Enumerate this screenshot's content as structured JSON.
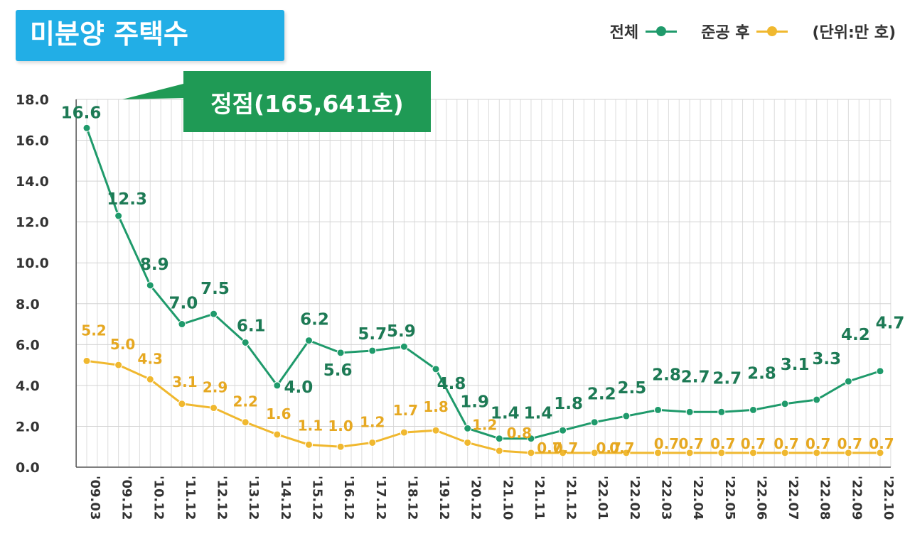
{
  "title": "미분양 주택수",
  "legend": {
    "total": "전체",
    "after_completion": "준공 후",
    "unit": "(단위:만 호)"
  },
  "callout": "정점(165,641호)",
  "colors": {
    "title_bg": "#22aee6",
    "total": "#1f9a6b",
    "after_completion": "#f0b82f",
    "callout_bg": "#1f9a55",
    "grid": "#d3d3d3"
  },
  "chart_data": {
    "type": "line",
    "categories": [
      "'09.03",
      "'09.12",
      "'10.12",
      "'11.12",
      "'12.12",
      "'13.12",
      "'14.12",
      "'15.12",
      "'16.12",
      "'17.12",
      "'18.12",
      "'19.12",
      "'20.12",
      "'21.10",
      "'21.11",
      "'21.12",
      "'22.01",
      "'22.02",
      "'22.03",
      "'22.04",
      "'22.05",
      "'22.06",
      "'22.07",
      "'22.08",
      "'22.09",
      "'22.10"
    ],
    "series": [
      {
        "name": "전체",
        "values": [
          16.6,
          12.3,
          8.9,
          7.0,
          7.5,
          6.1,
          4.0,
          6.2,
          5.6,
          5.7,
          5.9,
          4.8,
          1.9,
          1.4,
          1.4,
          1.8,
          2.2,
          2.5,
          2.8,
          2.7,
          2.7,
          2.8,
          3.1,
          3.3,
          4.2,
          4.7
        ]
      },
      {
        "name": "준공 후",
        "values": [
          5.2,
          5.0,
          4.3,
          3.1,
          2.9,
          2.2,
          1.6,
          1.1,
          1.0,
          1.2,
          1.7,
          1.8,
          1.2,
          0.8,
          0.7,
          0.7,
          0.7,
          0.7,
          0.7,
          0.7,
          0.7,
          0.7,
          0.7,
          0.7,
          0.7,
          0.7
        ]
      }
    ],
    "y_ticks": [
      "0.0",
      "2.0",
      "4.0",
      "6.0",
      "8.0",
      "10.0",
      "12.0",
      "14.0",
      "16.0",
      "18.0"
    ],
    "ylim": [
      0,
      18
    ],
    "xlabel": "",
    "ylabel": "",
    "grid": true,
    "legend_position": "top-right"
  }
}
